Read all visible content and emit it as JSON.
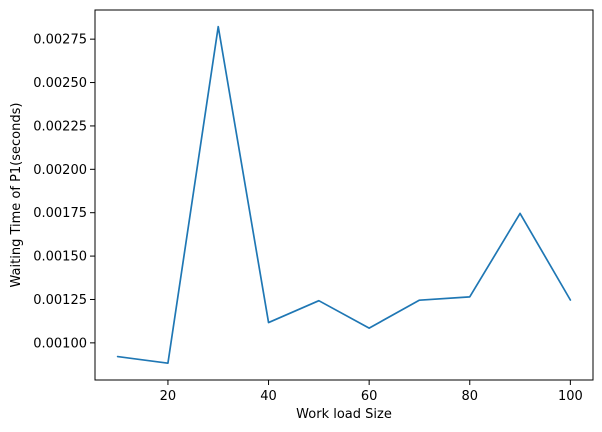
{
  "chart_data": {
    "type": "line",
    "title": "",
    "xlabel": "Work load Size",
    "ylabel": "Waiting Time of P1(seconds)",
    "x": [
      10,
      20,
      30,
      40,
      50,
      60,
      70,
      80,
      90,
      100
    ],
    "series": [
      {
        "values": [
          0.000921,
          0.000883,
          0.002822,
          0.001117,
          0.001243,
          0.001085,
          0.001246,
          0.001265,
          0.001746,
          0.001247
        ],
        "color": "#1f77b4"
      }
    ],
    "xlim": [
      5.5,
      104.5
    ],
    "ylim": [
      0.000786,
      0.002918
    ],
    "xticks": [
      20,
      40,
      60,
      80,
      100
    ],
    "xtick_labels": [
      "20",
      "40",
      "60",
      "80",
      "100"
    ],
    "yticks": [
      0.001,
      0.00125,
      0.0015,
      0.00175,
      0.002,
      0.00225,
      0.0025,
      0.00275
    ],
    "ytick_labels": [
      "0.00100",
      "0.00125",
      "0.00150",
      "0.00175",
      "0.00200",
      "0.00225",
      "0.00250",
      "0.00275"
    ],
    "grid": false,
    "legend": "none"
  }
}
